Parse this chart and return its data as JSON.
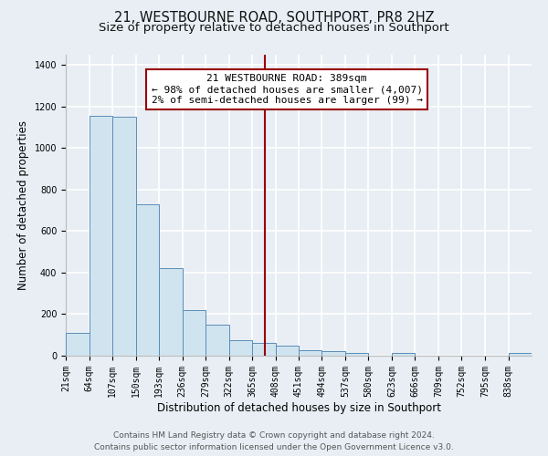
{
  "title": "21, WESTBOURNE ROAD, SOUTHPORT, PR8 2HZ",
  "subtitle": "Size of property relative to detached houses in Southport",
  "xlabel": "Distribution of detached houses by size in Southport",
  "ylabel": "Number of detached properties",
  "bar_edges": [
    21,
    64,
    107,
    150,
    193,
    236,
    279,
    322,
    365,
    408,
    451,
    494,
    537,
    580,
    623,
    666,
    709,
    752,
    795,
    838,
    881
  ],
  "bar_heights": [
    110,
    1155,
    1150,
    730,
    420,
    220,
    150,
    75,
    60,
    50,
    25,
    20,
    15,
    0,
    15,
    0,
    0,
    0,
    0,
    15
  ],
  "bar_color": "#d0e4f0",
  "bar_edge_color": "#5b8db8",
  "vline_x": 389,
  "vline_color": "#990000",
  "ylim": [
    0,
    1450
  ],
  "yticks": [
    0,
    200,
    400,
    600,
    800,
    1000,
    1200,
    1400
  ],
  "annotation_title": "21 WESTBOURNE ROAD: 389sqm",
  "annotation_line1": "← 98% of detached houses are smaller (4,007)",
  "annotation_line2": "2% of semi-detached houses are larger (99) →",
  "annotation_box_facecolor": "#ffffff",
  "annotation_box_edgecolor": "#990000",
  "footer_line1": "Contains HM Land Registry data © Crown copyright and database right 2024.",
  "footer_line2": "Contains public sector information licensed under the Open Government Licence v3.0.",
  "background_color": "#e8eef4",
  "plot_background_color": "#e8eef4",
  "grid_color": "#ffffff",
  "title_fontsize": 10.5,
  "subtitle_fontsize": 9.5,
  "xlabel_fontsize": 8.5,
  "ylabel_fontsize": 8.5,
  "tick_fontsize": 7,
  "footer_fontsize": 6.5
}
